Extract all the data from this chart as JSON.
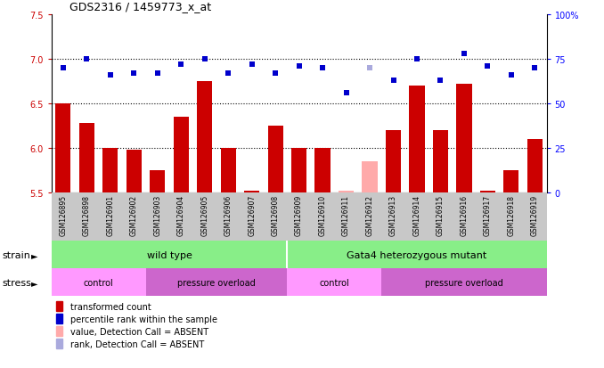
{
  "title": "GDS2316 / 1459773_x_at",
  "samples": [
    "GSM126895",
    "GSM126898",
    "GSM126901",
    "GSM126902",
    "GSM126903",
    "GSM126904",
    "GSM126905",
    "GSM126906",
    "GSM126907",
    "GSM126908",
    "GSM126909",
    "GSM126910",
    "GSM126911",
    "GSM126912",
    "GSM126913",
    "GSM126914",
    "GSM126915",
    "GSM126916",
    "GSM126917",
    "GSM126918",
    "GSM126919"
  ],
  "bar_values": [
    6.5,
    6.28,
    6.0,
    5.98,
    5.75,
    6.35,
    6.75,
    6.0,
    5.52,
    6.25,
    6.0,
    6.0,
    5.52,
    5.85,
    6.2,
    6.7,
    6.2,
    6.72,
    5.52,
    5.75,
    6.1
  ],
  "bar_absent": [
    false,
    false,
    false,
    false,
    false,
    false,
    false,
    false,
    false,
    false,
    false,
    false,
    true,
    true,
    false,
    false,
    false,
    false,
    false,
    false,
    false
  ],
  "rank_values": [
    6.9,
    7.0,
    6.82,
    6.84,
    6.84,
    6.94,
    7.0,
    6.84,
    6.94,
    6.84,
    6.92,
    6.9,
    6.62,
    6.9,
    6.76,
    7.0,
    6.76,
    7.06,
    6.92,
    6.82,
    6.9
  ],
  "rank_absent": [
    false,
    false,
    false,
    false,
    false,
    false,
    false,
    false,
    false,
    false,
    false,
    false,
    false,
    true,
    false,
    false,
    false,
    false,
    false,
    false,
    false
  ],
  "ylim_left": [
    5.5,
    7.5
  ],
  "ylim_right": [
    0,
    100
  ],
  "yticks_left": [
    5.5,
    6.0,
    6.5,
    7.0,
    7.5
  ],
  "yticks_right_vals": [
    0,
    25,
    50,
    75,
    100
  ],
  "yticks_right_labels": [
    "0",
    "25",
    "50",
    "75",
    "100%"
  ],
  "grid_lines": [
    6.0,
    6.5,
    7.0
  ],
  "bar_color": "#cc0000",
  "bar_absent_color": "#ffaaaa",
  "rank_color": "#0000cc",
  "rank_absent_color": "#aaaadd",
  "xbg_color": "#c8c8c8",
  "strain_color": "#88ee88",
  "stress_control_color": "#ff99ff",
  "stress_overload_color": "#cc66cc",
  "wt_range": [
    0,
    9
  ],
  "gata_range": [
    10,
    20
  ],
  "stress_groups": [
    {
      "start": 0,
      "end": 3,
      "label": "control",
      "type": "control"
    },
    {
      "start": 4,
      "end": 9,
      "label": "pressure overload",
      "type": "overload"
    },
    {
      "start": 10,
      "end": 13,
      "label": "control",
      "type": "control"
    },
    {
      "start": 14,
      "end": 20,
      "label": "pressure overload",
      "type": "overload"
    }
  ],
  "legend_items": [
    {
      "color": "#cc0000",
      "label": "transformed count"
    },
    {
      "color": "#0000cc",
      "label": "percentile rank within the sample"
    },
    {
      "color": "#ffaaaa",
      "label": "value, Detection Call = ABSENT"
    },
    {
      "color": "#aaaadd",
      "label": "rank, Detection Call = ABSENT"
    }
  ]
}
